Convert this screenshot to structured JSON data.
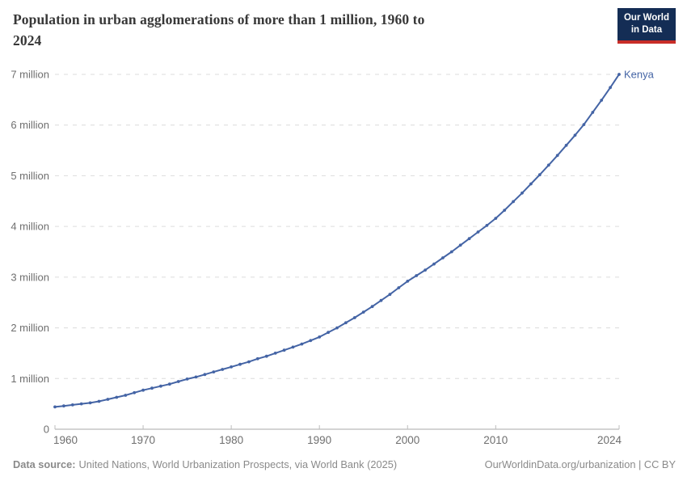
{
  "header": {
    "title": "Population in urban agglomerations of more than 1 million, 1960 to\n2024",
    "logo": {
      "line1": "Our World",
      "line2": "in Data"
    }
  },
  "chart_data": {
    "type": "line",
    "title": "Population in urban agglomerations of more than 1 million, 1960 to 2024",
    "unit": "million people",
    "grid": "horizontal dashed",
    "legend_position": "end-of-line label",
    "xlim": [
      1960,
      2024
    ],
    "ylim": [
      0,
      7
    ],
    "x_ticks": [
      1960,
      1970,
      1980,
      1990,
      2000,
      2010,
      2024
    ],
    "y_ticks": [
      {
        "value": 0,
        "label": "0"
      },
      {
        "value": 1,
        "label": "1 million"
      },
      {
        "value": 2,
        "label": "2 million"
      },
      {
        "value": 3,
        "label": "3 million"
      },
      {
        "value": 4,
        "label": "4 million"
      },
      {
        "value": 5,
        "label": "5 million"
      },
      {
        "value": 6,
        "label": "6 million"
      },
      {
        "value": 7,
        "label": "7 million"
      }
    ],
    "x": [
      1960,
      1961,
      1962,
      1963,
      1964,
      1965,
      1966,
      1967,
      1968,
      1969,
      1970,
      1971,
      1972,
      1973,
      1974,
      1975,
      1976,
      1977,
      1978,
      1979,
      1980,
      1981,
      1982,
      1983,
      1984,
      1985,
      1986,
      1987,
      1988,
      1989,
      1990,
      1991,
      1992,
      1993,
      1994,
      1995,
      1996,
      1997,
      1998,
      1999,
      2000,
      2001,
      2002,
      2003,
      2004,
      2005,
      2006,
      2007,
      2008,
      2009,
      2010,
      2011,
      2012,
      2013,
      2014,
      2015,
      2016,
      2017,
      2018,
      2019,
      2020,
      2021,
      2022,
      2023,
      2024
    ],
    "series": [
      {
        "name": "Kenya",
        "color": "#4464a5",
        "values": [
          0.44,
          0.46,
          0.48,
          0.5,
          0.52,
          0.55,
          0.59,
          0.63,
          0.67,
          0.72,
          0.77,
          0.81,
          0.85,
          0.89,
          0.94,
          0.99,
          1.03,
          1.08,
          1.13,
          1.18,
          1.23,
          1.28,
          1.33,
          1.39,
          1.44,
          1.5,
          1.56,
          1.62,
          1.68,
          1.75,
          1.82,
          1.91,
          2.0,
          2.1,
          2.2,
          2.31,
          2.42,
          2.54,
          2.66,
          2.79,
          2.92,
          3.03,
          3.14,
          3.26,
          3.38,
          3.5,
          3.63,
          3.76,
          3.89,
          4.02,
          4.16,
          4.32,
          4.49,
          4.66,
          4.84,
          5.02,
          5.21,
          5.4,
          5.6,
          5.8,
          6.01,
          6.25,
          6.49,
          6.74,
          7.0
        ]
      }
    ]
  },
  "footer": {
    "data_source_label": "Data source:",
    "data_source_text": "United Nations, World Urbanization Prospects, via World Bank (2025)",
    "credit": "OurWorldinData.org/urbanization | CC BY"
  },
  "colors": {
    "line": "#4464a5",
    "end_label": "#4464a5",
    "title_text": "#383838",
    "tick_label": "#6f6f6f",
    "gridline": "#dcdcdc",
    "axis_line": "#a8a8a8",
    "tick_mark": "#bcbcbc",
    "footer_text": "#8a8a8a",
    "logo_background": "#142d55",
    "logo_red_bar": "#c82d28"
  }
}
